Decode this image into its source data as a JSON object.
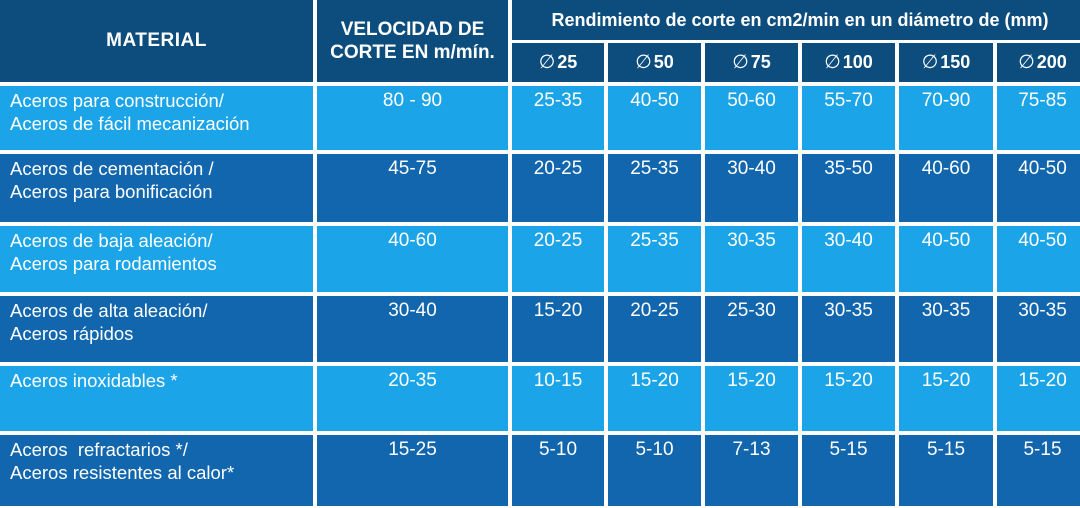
{
  "header": {
    "material": "MATERIAL",
    "velocidad_line1": "VELOCIDAD DE",
    "velocidad_line2": "CORTE EN m/mín.",
    "rendimiento": "Rendimiento de corte en cm2/min en un diámetro de (mm)",
    "diameter_symbol": "∅",
    "diameters": [
      "25",
      "50",
      "75",
      "100",
      "150",
      "200"
    ]
  },
  "rows": [
    {
      "material_line1": "Aceros para construcción/",
      "material_line2": "Aceros de fácil mecanización",
      "velocidad": "80 - 90",
      "values": [
        "25-35",
        "40-50",
        "50-60",
        "55-70",
        "70-90",
        "75-85"
      ]
    },
    {
      "material_line1": "Aceros de cementación /",
      "material_line2": "Aceros para bonificación",
      "velocidad": "45-75",
      "values": [
        "20-25",
        "25-35",
        "30-40",
        "35-50",
        "40-60",
        "40-50"
      ]
    },
    {
      "material_line1": "Aceros de baja aleación/",
      "material_line2": "Aceros para rodamientos",
      "velocidad": "40-60",
      "values": [
        "20-25",
        "25-35",
        "30-35",
        "30-40",
        "40-50",
        "40-50"
      ]
    },
    {
      "material_line1": "Aceros de alta aleación/",
      "material_line2": "Aceros rápidos",
      "velocidad": "30-40",
      "values": [
        "15-20",
        "20-25",
        "25-30",
        "30-35",
        "30-35",
        "30-35"
      ]
    },
    {
      "material_line1": "Aceros inoxidables *",
      "material_line2": "",
      "velocidad": "20-35",
      "values": [
        "10-15",
        "15-20",
        "15-20",
        "15-20",
        "15-20",
        "15-20"
      ]
    },
    {
      "material_line1": "Aceros  refractarios */",
      "material_line2": "Aceros resistentes al calor*",
      "velocidad": "15-25",
      "values": [
        "5-10",
        "5-10",
        "7-13",
        "5-15",
        "5-15",
        "5-15"
      ]
    }
  ],
  "colors": {
    "header": "#0c4d7d",
    "row_light": "#1ca4e8",
    "row_dark": "#1166ad",
    "text": "#ffffff"
  }
}
